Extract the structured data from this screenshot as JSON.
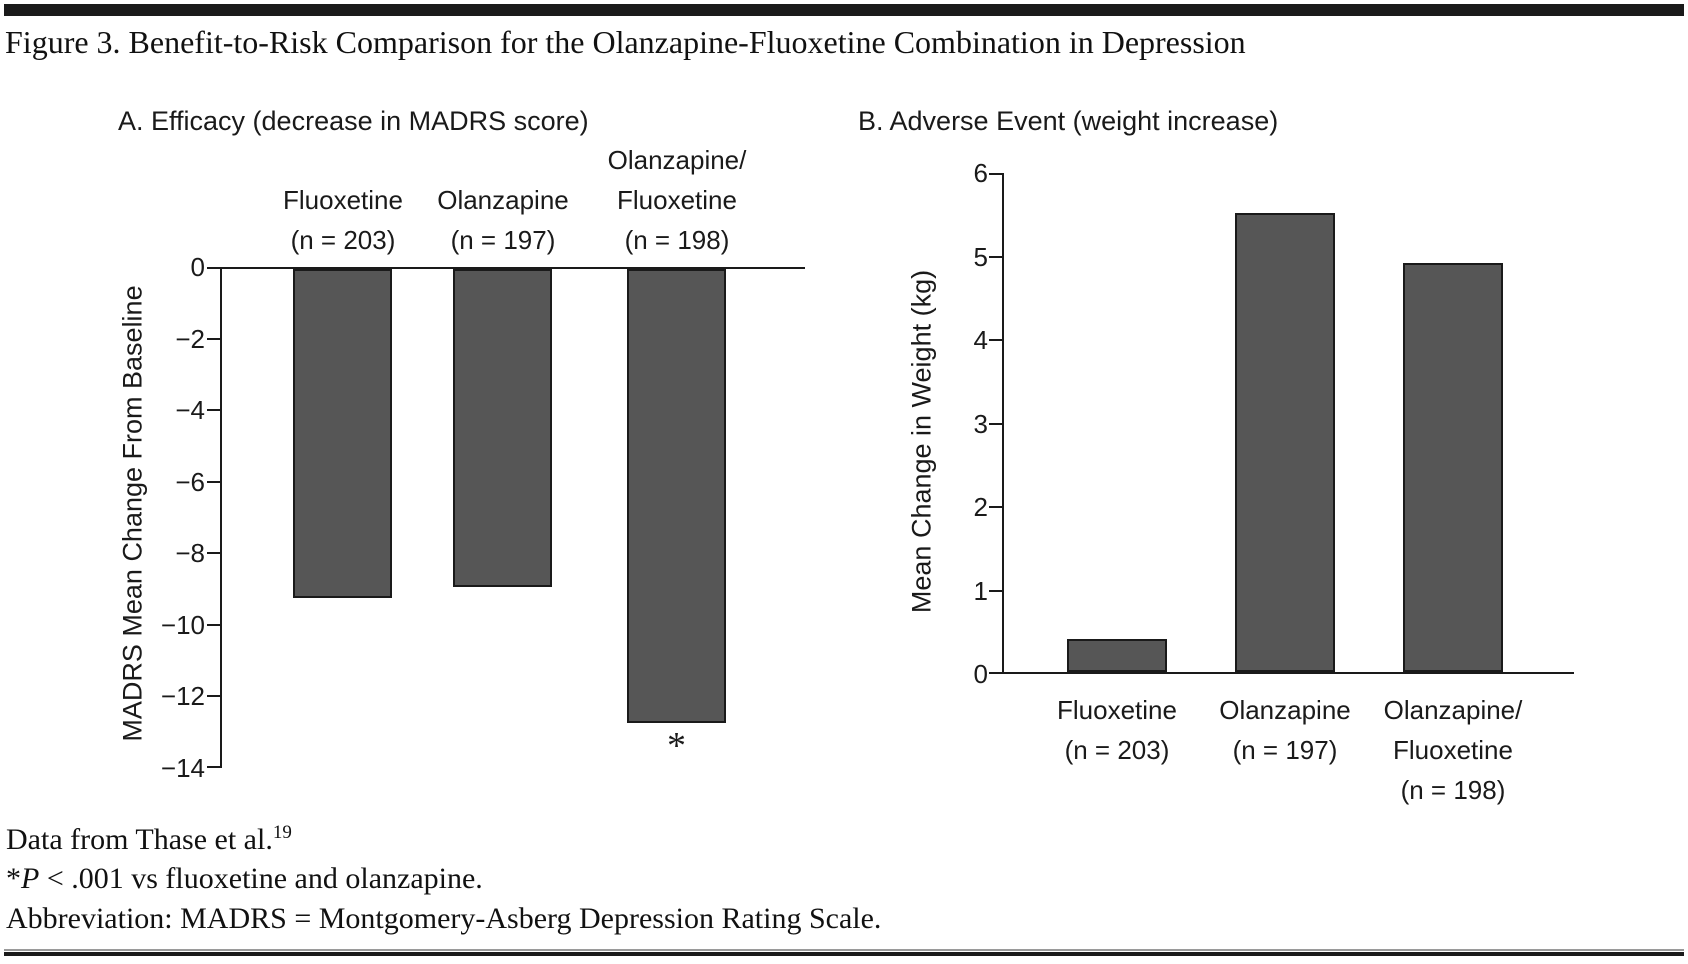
{
  "figure_title": "Figure 3. Benefit-to-Risk Comparison for the Olanzapine-Fluoxetine Combination in Depression",
  "colors": {
    "bar_fill": "#565656",
    "bar_border": "#1a1a1a",
    "rule": "#1a1a1a",
    "text": "#1a1a1a"
  },
  "panel_a": {
    "title": "A. Efficacy (decrease in MADRS score)",
    "ylabel": "MADRS Mean Change From Baseline",
    "yticks": [
      "0",
      "−2",
      "−4",
      "−6",
      "−8",
      "−10",
      "−12",
      "−14"
    ],
    "groups": [
      {
        "lines": [
          "Fluoxetine",
          "(n = 203)"
        ]
      },
      {
        "lines": [
          "Olanzapine",
          "(n = 197)"
        ]
      },
      {
        "lines": [
          "Olanzapine/",
          "Fluoxetine",
          "(n = 198)"
        ]
      }
    ],
    "annotation": "*"
  },
  "panel_b": {
    "title": "B. Adverse Event (weight increase)",
    "ylabel": "Mean Change in Weight (kg)",
    "yticks": [
      "6",
      "5",
      "4",
      "3",
      "2",
      "1",
      "0"
    ],
    "groups": [
      {
        "lines": [
          "Fluoxetine",
          "(n = 203)"
        ]
      },
      {
        "lines": [
          "Olanzapine",
          "(n = 197)"
        ]
      },
      {
        "lines": [
          "Olanzapine/",
          "Fluoxetine",
          "(n = 198)"
        ]
      }
    ]
  },
  "footnotes": {
    "line1_text": "Data from Thase et al.",
    "line1_sup": "19",
    "line2_star": "*",
    "line2_p": "P",
    "line2_rest": " < .001 vs fluoxetine and olanzapine.",
    "line3": "Abbreviation: MADRS = Montgomery-Asberg Depression Rating Scale."
  },
  "chart_data": [
    {
      "type": "bar",
      "panel": "A",
      "title": "A. Efficacy (decrease in MADRS score)",
      "categories": [
        "Fluoxetine (n = 203)",
        "Olanzapine (n = 197)",
        "Olanzapine/Fluoxetine (n = 198)"
      ],
      "values": [
        -9.2,
        -8.9,
        -12.7
      ],
      "xlabel": "",
      "ylabel": "MADRS Mean Change From Baseline",
      "ylim": [
        -14,
        0
      ],
      "yticks": [
        0,
        -2,
        -4,
        -6,
        -8,
        -10,
        -12,
        -14
      ],
      "grid": false,
      "legend": false,
      "annotations": [
        {
          "category_index": 2,
          "text": "*",
          "meaning": "P < .001 vs fluoxetine and olanzapine"
        }
      ]
    },
    {
      "type": "bar",
      "panel": "B",
      "title": "B. Adverse Event (weight increase)",
      "categories": [
        "Fluoxetine (n = 203)",
        "Olanzapine (n = 197)",
        "Olanzapine/Fluoxetine (n = 198)"
      ],
      "values": [
        0.4,
        5.5,
        4.9
      ],
      "xlabel": "",
      "ylabel": "Mean Change in Weight (kg)",
      "ylim": [
        0,
        6
      ],
      "yticks": [
        0,
        1,
        2,
        3,
        4,
        5,
        6
      ],
      "grid": false,
      "legend": false,
      "annotations": []
    }
  ]
}
